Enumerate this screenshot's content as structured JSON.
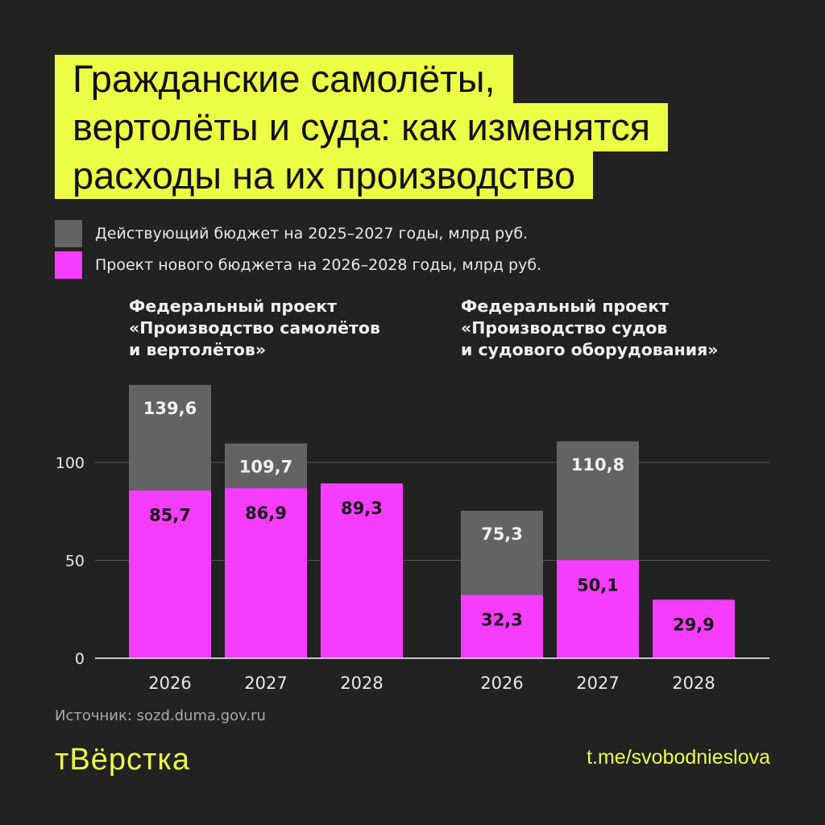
{
  "title_lines": [
    "Гражданские самолёты,",
    "вертолёты и суда: как изменятся",
    "расходы на их производство"
  ],
  "colors": {
    "background": "#222222",
    "title_bg": "#ecfd45",
    "current": "#636363",
    "project": "#f53cff"
  },
  "legend": [
    {
      "label": "Действующий бюджет на 2025–2027 годы, млрд руб.",
      "color": "#636363"
    },
    {
      "label": "Проект нового бюджета на 2026–2028 годы, млрд руб.",
      "color": "#f53cff"
    }
  ],
  "groups": [
    {
      "title_lines": [
        "Федеральный проект",
        "«Производство самолётов",
        "и вертолётов»"
      ]
    },
    {
      "title_lines": [
        "Федеральный проект",
        "«Производство судов",
        "и судового оборудования»"
      ]
    }
  ],
  "chart_data": {
    "type": "bar",
    "ylim": [
      0,
      150
    ],
    "yticks": [
      0,
      50,
      100
    ],
    "grid": true,
    "groups": [
      {
        "categories": [
          "2026",
          "2027",
          "2028"
        ],
        "series": [
          {
            "name": "Действующий бюджет на 2025–2027 годы, млрд руб.",
            "values": [
              139.6,
              109.7,
              null
            ],
            "labels": [
              "139,6",
              "109,7",
              ""
            ]
          },
          {
            "name": "Проект нового бюджета на 2026–2028 годы, млрд руб.",
            "values": [
              85.7,
              86.9,
              89.3
            ],
            "labels": [
              "85,7",
              "86,9",
              "89,3"
            ]
          }
        ]
      },
      {
        "categories": [
          "2026",
          "2027",
          "2028"
        ],
        "series": [
          {
            "name": "Действующий бюджет на 2025–2027 годы, млрд руб.",
            "values": [
              75.3,
              110.8,
              null
            ],
            "labels": [
              "75,3",
              "110,8",
              ""
            ]
          },
          {
            "name": "Проект нового бюджета на 2026–2028 годы, млрд руб.",
            "values": [
              32.3,
              50.1,
              29.9
            ],
            "labels": [
              "32,3",
              "50,1",
              "29,9"
            ]
          }
        ]
      }
    ]
  },
  "source": "Источник: sozd.duma.gov.ru",
  "logo": "тВёрстка",
  "telegram": "t.me/svobodnieslova"
}
